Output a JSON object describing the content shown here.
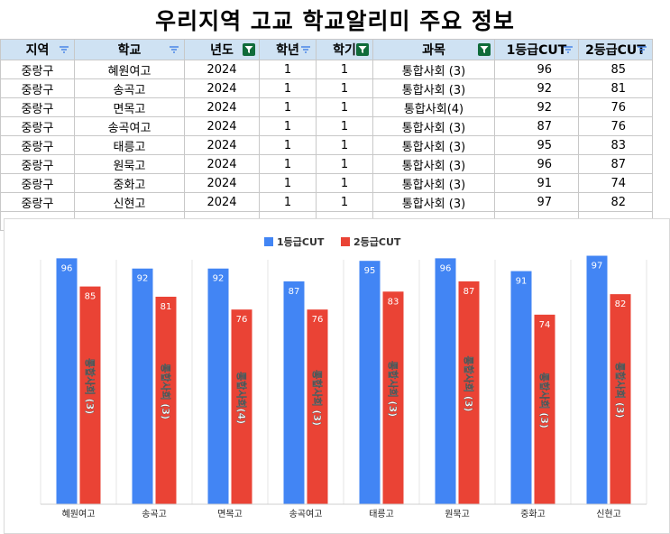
{
  "title": "우리지역 고교 학교알리미 주요 정보",
  "table": {
    "headers": [
      "지역",
      "학교",
      "년도",
      "학년",
      "학기",
      "과목",
      "1등급CUT",
      "2등급CUT"
    ],
    "rows": [
      [
        "중랑구",
        "혜원여고",
        "2024",
        "1",
        "1",
        "통합사회 (3)",
        "96",
        "85"
      ],
      [
        "중랑구",
        "송곡고",
        "2024",
        "1",
        "1",
        "통합사회 (3)",
        "92",
        "81"
      ],
      [
        "중랑구",
        "면목고",
        "2024",
        "1",
        "1",
        "통합사회(4)",
        "92",
        "76"
      ],
      [
        "중랑구",
        "송곡여고",
        "2024",
        "1",
        "1",
        "통합사회 (3)",
        "87",
        "76"
      ],
      [
        "중랑구",
        "태릉고",
        "2024",
        "1",
        "1",
        "통합사회 (3)",
        "95",
        "83"
      ],
      [
        "중랑구",
        "원묵고",
        "2024",
        "1",
        "1",
        "통합사회 (3)",
        "96",
        "87"
      ],
      [
        "중랑구",
        "중화고",
        "2024",
        "1",
        "1",
        "통합사회 (3)",
        "91",
        "74"
      ],
      [
        "중랑구",
        "신현고",
        "2024",
        "1",
        "1",
        "통합사회 (3)",
        "97",
        "82"
      ]
    ]
  },
  "chart_data": {
    "type": "bar",
    "categories": [
      "혜원여고",
      "송곡고",
      "면목고",
      "송곡여고",
      "태릉고",
      "원묵고",
      "중화고",
      "신현고"
    ],
    "series": [
      {
        "name": "1등급CUT",
        "values": [
          96,
          92,
          92,
          87,
          95,
          96,
          91,
          97
        ],
        "color": "#4285f4"
      },
      {
        "name": "2등급CUT",
        "values": [
          85,
          81,
          76,
          76,
          83,
          87,
          74,
          82
        ],
        "color": "#ea4335"
      }
    ],
    "bar_labels": [
      "통합사회 (3)",
      "통합사회 (3)",
      "통합사회(4)",
      "통합사회 (3)",
      "통합사회 (3)",
      "통합사회 (3)",
      "통합사회 (3)",
      "통합사회 (3)"
    ],
    "ylim": [
      0,
      100
    ],
    "grid": true,
    "legend_position": "top-center"
  },
  "colors": {
    "header_bg": "#cfe2f3",
    "filter_active": "#0f6b3a",
    "filter_line": "#6aa84f"
  }
}
